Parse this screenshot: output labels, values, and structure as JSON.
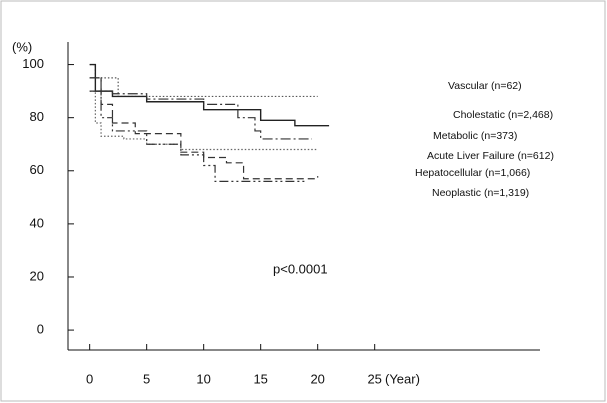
{
  "chart_data": {
    "type": "line",
    "y_unit_label": "(%)",
    "x_label": "(Year)",
    "annotation": "p<0.0001",
    "xlim": [
      -1.9,
      39.5
    ],
    "xticks": [
      0,
      5,
      10,
      15,
      20,
      25
    ],
    "ylim": [
      -7.5,
      108.5
    ],
    "yticks": [
      0,
      20,
      40,
      60,
      80,
      100
    ],
    "series": [
      {
        "name": "Vascular (n=62)",
        "color": "#555",
        "line_style": "dotted",
        "x": [
          0,
          0.5,
          2,
          2.5,
          20
        ],
        "values": [
          100,
          95,
          95,
          88,
          88
        ]
      },
      {
        "name": "Cholestatic (n=2,468)",
        "color": "#222",
        "line_style": "solid",
        "x": [
          0,
          0.5,
          2,
          5,
          10,
          15,
          18,
          21
        ],
        "values": [
          100,
          90,
          88,
          86,
          83,
          79,
          77,
          77
        ]
      },
      {
        "name": "Metabolic (n=373)",
        "color": "#333",
        "line_style": "dashdot",
        "x": [
          0,
          1,
          2,
          4,
          5,
          10,
          13,
          14.5,
          15,
          16,
          19.5
        ],
        "values": [
          95,
          90,
          89,
          89,
          87,
          85,
          80,
          75,
          72,
          72,
          72
        ]
      },
      {
        "name": "Acute Liver Failure (n=612)",
        "color": "#666",
        "line_style": "dotted",
        "x": [
          0,
          0.5,
          1,
          3,
          5,
          8,
          20
        ],
        "values": [
          90,
          78,
          73,
          72,
          70,
          68,
          68
        ]
      },
      {
        "name": "Hepatocellular (n=1,066)",
        "color": "#333",
        "line_style": "dashed",
        "x": [
          0,
          1,
          2,
          4,
          8,
          10,
          12,
          13,
          13.5,
          18,
          20
        ],
        "values": [
          95,
          85,
          78,
          74,
          67,
          65,
          63,
          63,
          57,
          57,
          58
        ]
      },
      {
        "name": "Neoplastic (n=1,319)",
        "color": "#333",
        "line_style": "dashdotdot",
        "x": [
          0,
          1,
          2,
          5,
          8,
          10,
          11,
          19
        ],
        "values": [
          90,
          80,
          75,
          70,
          66,
          62,
          56,
          56
        ]
      }
    ]
  }
}
